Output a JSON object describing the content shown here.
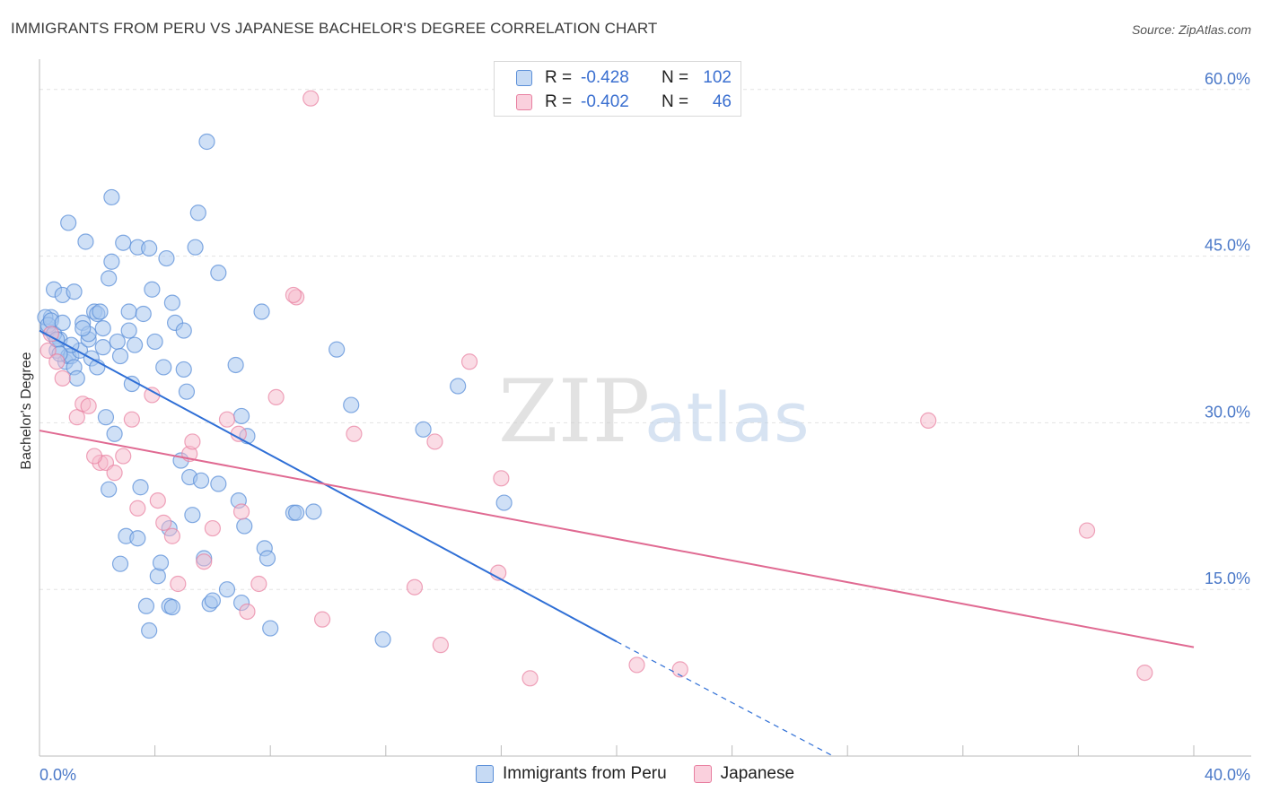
{
  "title": "IMMIGRANTS FROM PERU VS JAPANESE BACHELOR'S DEGREE CORRELATION CHART",
  "source": "Source: ZipAtlas.com",
  "watermark": {
    "zip": "ZIP",
    "atlas": "atlas"
  },
  "legend": [
    {
      "r_label": "R =",
      "r_value": "-0.428",
      "n_label": "N =",
      "n_value": "102"
    },
    {
      "r_label": "R =",
      "r_value": "-0.402",
      "n_label": "N =",
      "n_value": "46"
    }
  ],
  "colors": {
    "blue_fill": "#a8c6ee",
    "blue_stroke": "#5b8fd8",
    "blue_line": "#2f6fd6",
    "pink_fill": "#f6b9cc",
    "pink_stroke": "#e87fa0",
    "pink_line": "#e06a92",
    "tick_text": "#4a78c8",
    "grid": "#e3e3e3"
  },
  "chart_data": {
    "type": "scatter",
    "title": "IMMIGRANTS FROM PERU VS JAPANESE BACHELOR'S DEGREE CORRELATION CHART",
    "xlabel": "",
    "ylabel": "Bachelor's Degree",
    "xlim": [
      0,
      40
    ],
    "ylim": [
      0,
      62
    ],
    "x_ticks": [
      "0.0%",
      "40.0%"
    ],
    "y_ticks": [
      {
        "value": 15,
        "label": "15.0%"
      },
      {
        "value": 30,
        "label": "30.0%"
      },
      {
        "value": 45,
        "label": "45.0%"
      },
      {
        "value": 60,
        "label": "60.0%"
      }
    ],
    "grid": true,
    "legend_position": "top-center",
    "series": [
      {
        "name": "Immigrants from Peru",
        "r": -0.428,
        "n": 102,
        "trend": {
          "x0": 0,
          "y0": 38.3,
          "x1": 20,
          "y1": 10.3,
          "dash_x1": 27.5,
          "dash_y1": 0
        },
        "points": [
          [
            0.3,
            38.5
          ],
          [
            0.4,
            39.5
          ],
          [
            0.5,
            42
          ],
          [
            0.6,
            36.5
          ],
          [
            0.7,
            37.5
          ],
          [
            0.8,
            41.5
          ],
          [
            0.9,
            35.5
          ],
          [
            1.0,
            36
          ],
          [
            1.0,
            48
          ],
          [
            1.1,
            36
          ],
          [
            1.2,
            35
          ],
          [
            1.2,
            41.8
          ],
          [
            1.3,
            34
          ],
          [
            1.4,
            36.5
          ],
          [
            1.5,
            39
          ],
          [
            1.6,
            46.3
          ],
          [
            1.7,
            37.5
          ],
          [
            1.7,
            38
          ],
          [
            1.8,
            35.8
          ],
          [
            1.9,
            40
          ],
          [
            2.0,
            39.8
          ],
          [
            2.0,
            35
          ],
          [
            2.1,
            40
          ],
          [
            2.2,
            36.8
          ],
          [
            2.2,
            38.5
          ],
          [
            2.3,
            30.5
          ],
          [
            2.4,
            43
          ],
          [
            2.4,
            24
          ],
          [
            2.5,
            50.3
          ],
          [
            2.5,
            44.5
          ],
          [
            2.6,
            29
          ],
          [
            2.7,
            37.3
          ],
          [
            2.8,
            17.3
          ],
          [
            2.8,
            36
          ],
          [
            2.9,
            46.2
          ],
          [
            3.0,
            19.8
          ],
          [
            3.1,
            40
          ],
          [
            3.1,
            38.3
          ],
          [
            3.2,
            33.5
          ],
          [
            3.3,
            37
          ],
          [
            3.4,
            19.6
          ],
          [
            3.4,
            45.8
          ],
          [
            3.5,
            24.2
          ],
          [
            3.6,
            39.8
          ],
          [
            3.7,
            13.5
          ],
          [
            3.8,
            45.7
          ],
          [
            3.8,
            11.3
          ],
          [
            3.9,
            42
          ],
          [
            4.0,
            37.3
          ],
          [
            4.1,
            16.2
          ],
          [
            4.2,
            17.4
          ],
          [
            4.3,
            35
          ],
          [
            4.4,
            44.8
          ],
          [
            4.5,
            20.5
          ],
          [
            4.5,
            13.5
          ],
          [
            4.6,
            13.4
          ],
          [
            4.6,
            40.8
          ],
          [
            4.7,
            39
          ],
          [
            4.9,
            26.6
          ],
          [
            5.0,
            38.3
          ],
          [
            5.0,
            34.8
          ],
          [
            5.1,
            32.8
          ],
          [
            5.2,
            25.1
          ],
          [
            5.3,
            21.7
          ],
          [
            5.4,
            45.8
          ],
          [
            5.5,
            48.9
          ],
          [
            5.6,
            24.8
          ],
          [
            5.7,
            17.8
          ],
          [
            5.9,
            13.7
          ],
          [
            6.0,
            14
          ],
          [
            5.8,
            55.3
          ],
          [
            6.2,
            24.5
          ],
          [
            6.2,
            43.5
          ],
          [
            6.5,
            15
          ],
          [
            6.8,
            35.2
          ],
          [
            6.9,
            23
          ],
          [
            7.0,
            30.6
          ],
          [
            7.0,
            13.8
          ],
          [
            7.1,
            20.7
          ],
          [
            7.2,
            28.8
          ],
          [
            7.7,
            40
          ],
          [
            7.8,
            18.7
          ],
          [
            7.9,
            17.8
          ],
          [
            8.0,
            11.5
          ],
          [
            8.8,
            21.9
          ],
          [
            8.9,
            21.9
          ],
          [
            9.5,
            22
          ],
          [
            10.3,
            36.6
          ],
          [
            10.8,
            31.6
          ],
          [
            11.9,
            10.5
          ],
          [
            13.3,
            29.4
          ],
          [
            14.5,
            33.3
          ],
          [
            16.1,
            22.8
          ],
          [
            0.2,
            39.5
          ],
          [
            0.3,
            38.8
          ],
          [
            0.4,
            39.2
          ],
          [
            0.5,
            38
          ],
          [
            0.6,
            37.5
          ],
          [
            0.8,
            39
          ],
          [
            1.1,
            37
          ],
          [
            1.5,
            38.5
          ],
          [
            0.7,
            36.2
          ]
        ]
      },
      {
        "name": "Japanese",
        "r": -0.402,
        "n": 46,
        "trend": {
          "x0": 0,
          "y0": 29.3,
          "x1": 40,
          "y1": 9.8
        },
        "points": [
          [
            0.3,
            36.5
          ],
          [
            0.4,
            38
          ],
          [
            0.6,
            35.5
          ],
          [
            0.8,
            34
          ],
          [
            1.3,
            30.5
          ],
          [
            1.5,
            31.7
          ],
          [
            1.7,
            31.5
          ],
          [
            2.1,
            26.4
          ],
          [
            2.3,
            26.4
          ],
          [
            2.6,
            25.5
          ],
          [
            2.9,
            27
          ],
          [
            3.2,
            30.3
          ],
          [
            3.4,
            22.3
          ],
          [
            3.9,
            32.5
          ],
          [
            4.1,
            23
          ],
          [
            4.3,
            21
          ],
          [
            4.6,
            19.8
          ],
          [
            4.8,
            15.5
          ],
          [
            5.2,
            27.2
          ],
          [
            5.3,
            28.3
          ],
          [
            5.7,
            17.5
          ],
          [
            6.0,
            20.5
          ],
          [
            6.5,
            30.3
          ],
          [
            6.9,
            29
          ],
          [
            7.0,
            22
          ],
          [
            7.2,
            13
          ],
          [
            7.6,
            15.5
          ],
          [
            8.2,
            32.3
          ],
          [
            8.9,
            41.3
          ],
          [
            8.8,
            41.5
          ],
          [
            9.4,
            59.2
          ],
          [
            9.8,
            12.3
          ],
          [
            10.9,
            29
          ],
          [
            13.0,
            15.2
          ],
          [
            13.7,
            28.3
          ],
          [
            13.9,
            10
          ],
          [
            14.9,
            35.5
          ],
          [
            15.9,
            16.5
          ],
          [
            16.0,
            25
          ],
          [
            17.0,
            7
          ],
          [
            20.7,
            8.2
          ],
          [
            22.2,
            7.8
          ],
          [
            30.8,
            30.2
          ],
          [
            36.3,
            20.3
          ],
          [
            38.3,
            7.5
          ],
          [
            1.9,
            27
          ]
        ]
      }
    ]
  },
  "bottom_legend": [
    {
      "label": "Immigrants from Peru"
    },
    {
      "label": "Japanese"
    }
  ]
}
